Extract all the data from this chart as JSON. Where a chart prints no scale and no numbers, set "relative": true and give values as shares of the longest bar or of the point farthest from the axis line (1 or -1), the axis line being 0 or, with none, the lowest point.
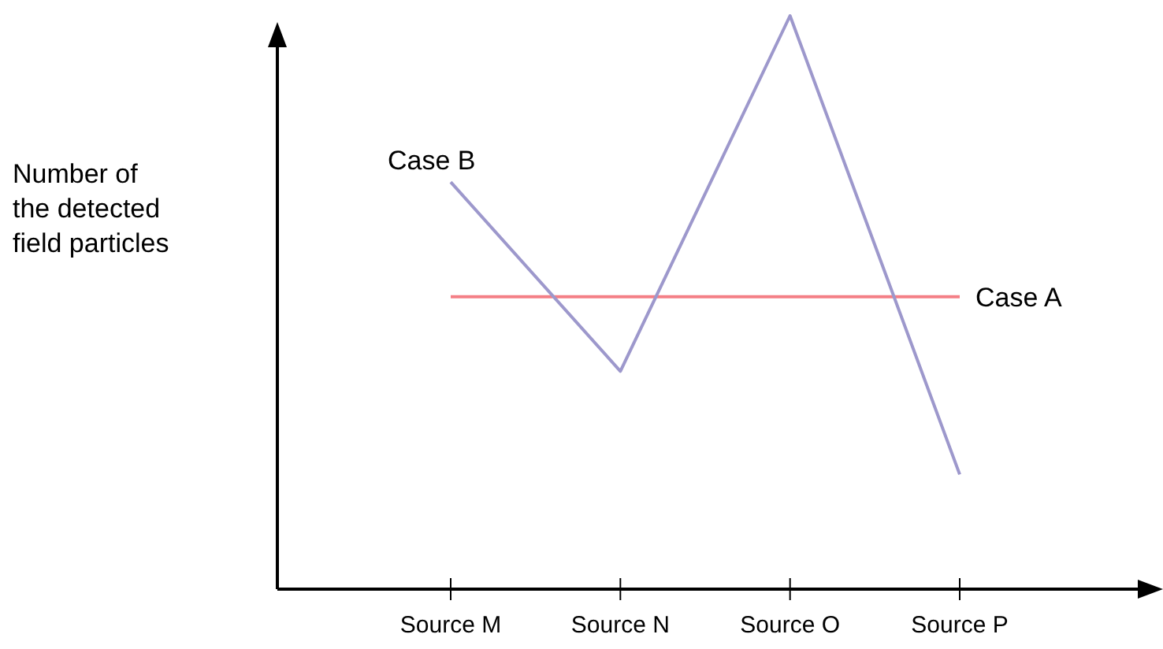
{
  "chart_data": {
    "type": "line",
    "relative": true,
    "ylabel": "Number of the detected field particles",
    "categories": [
      "Source M",
      "Source N",
      "Source O",
      "Source P"
    ],
    "series": [
      {
        "name": "Case A",
        "color": "#f47f86",
        "values": [
          0.51,
          0.51,
          0.51,
          0.51
        ]
      },
      {
        "name": "Case B",
        "color": "#9d98cc",
        "values": [
          0.71,
          0.38,
          1,
          0.2
        ]
      }
    ]
  }
}
